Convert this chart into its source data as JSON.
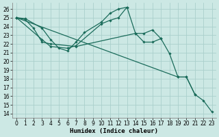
{
  "background_color": "#cce8e4",
  "grid_color": "#aacfcc",
  "line_color": "#1a6b5a",
  "xlabel": "Humidex (Indice chaleur)",
  "ylim": [
    13.5,
    26.7
  ],
  "xlim": [
    -0.5,
    23.5
  ],
  "yticks": [
    14,
    15,
    16,
    17,
    18,
    19,
    20,
    21,
    22,
    23,
    24,
    25,
    26
  ],
  "xticks": [
    0,
    1,
    2,
    3,
    4,
    5,
    6,
    7,
    8,
    9,
    10,
    11,
    12,
    13,
    14,
    15,
    16,
    17,
    18,
    19,
    20,
    21,
    22,
    23
  ],
  "lines": [
    {
      "x": [
        0,
        1,
        3,
        4,
        5,
        6,
        7,
        8,
        10,
        11,
        12,
        13,
        14,
        15,
        16,
        17
      ],
      "y": [
        25.0,
        24.9,
        23.8,
        22.5,
        21.5,
        21.2,
        22.2,
        23.3,
        24.5,
        25.5,
        26.0,
        26.2,
        23.2,
        22.2,
        22.2,
        22.6
      ]
    },
    {
      "x": [
        0,
        1,
        2,
        3,
        4,
        7,
        14,
        15,
        16,
        17,
        18,
        19,
        20,
        21
      ],
      "y": [
        25.0,
        24.8,
        23.8,
        22.2,
        22.0,
        21.7,
        23.2,
        23.2,
        23.6,
        22.6,
        20.9,
        18.2,
        18.2,
        16.2
      ]
    },
    {
      "x": [
        0,
        19,
        20,
        21,
        22,
        23
      ],
      "y": [
        25.0,
        18.2,
        18.2,
        16.2,
        15.5,
        14.2
      ]
    },
    {
      "x": [
        0,
        3,
        4,
        6,
        7,
        10,
        11,
        12,
        13
      ],
      "y": [
        25.0,
        22.5,
        21.7,
        21.5,
        21.8,
        24.3,
        24.7,
        25.0,
        26.2
      ]
    }
  ]
}
